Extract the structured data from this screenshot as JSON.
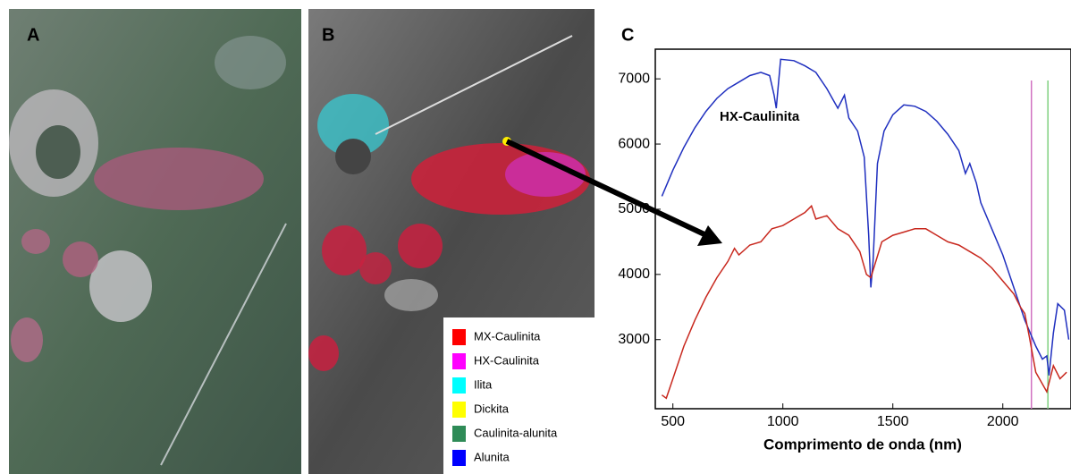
{
  "panels": {
    "a": "A",
    "b": "B"
  },
  "panel_b_legend": [
    {
      "label": "MX-Caulinita",
      "color": "#ff0000"
    },
    {
      "label": "HX-Caulinita",
      "color": "#ff00ff"
    },
    {
      "label": "Ilita",
      "color": "#00ffff"
    },
    {
      "label": "Dickita",
      "color": "#ffff00"
    },
    {
      "label": "Caulinita-alunita",
      "color": "#2e8b57"
    },
    {
      "label": "Alunita",
      "color": "#0000ff"
    }
  ],
  "chart_data": {
    "type": "line",
    "panel_label": "C",
    "xlabel": "Comprimento de onda (nm)",
    "annotation": "HX-Caulinita",
    "xlim": [
      420,
      2310
    ],
    "ylim": [
      1940,
      7455
    ],
    "xticks": [
      500,
      1000,
      1500,
      2000
    ],
    "yticks": [
      3000,
      4000,
      5000,
      6000,
      7000
    ],
    "reference_lines": [
      {
        "value": 2130,
        "color": "#d070c0"
      },
      {
        "value": 2205,
        "color": "#80d080"
      }
    ],
    "series": [
      {
        "name": "HX-Caulinita",
        "color": "#1f2fbf",
        "x": [
          450,
          500,
          550,
          600,
          650,
          700,
          750,
          800,
          850,
          900,
          940,
          960,
          970,
          990,
          1050,
          1100,
          1150,
          1200,
          1250,
          1280,
          1300,
          1340,
          1370,
          1390,
          1400,
          1410,
          1430,
          1460,
          1500,
          1550,
          1600,
          1650,
          1700,
          1750,
          1800,
          1830,
          1850,
          1880,
          1900,
          1950,
          2000,
          2050,
          2100,
          2150,
          2180,
          2200,
          2210,
          2230,
          2250,
          2280,
          2300
        ],
        "values": [
          5200,
          5600,
          5950,
          6250,
          6500,
          6700,
          6850,
          6950,
          7050,
          7100,
          7050,
          6750,
          6550,
          7300,
          7280,
          7200,
          7100,
          6850,
          6550,
          6750,
          6400,
          6200,
          5800,
          4600,
          3800,
          4200,
          5700,
          6200,
          6450,
          6600,
          6580,
          6500,
          6350,
          6150,
          5900,
          5550,
          5700,
          5400,
          5100,
          4700,
          4300,
          3800,
          3300,
          2900,
          2700,
          2750,
          2450,
          3100,
          3550,
          3450,
          3000
        ]
      },
      {
        "color": "#c8281e",
        "x": [
          450,
          470,
          500,
          550,
          600,
          650,
          700,
          750,
          780,
          800,
          850,
          900,
          950,
          1000,
          1050,
          1100,
          1130,
          1150,
          1200,
          1250,
          1300,
          1350,
          1380,
          1400,
          1450,
          1500,
          1550,
          1600,
          1650,
          1700,
          1750,
          1800,
          1850,
          1900,
          1950,
          2000,
          2050,
          2080,
          2100,
          2120,
          2150,
          2200,
          2230,
          2260,
          2290
        ],
        "values": [
          2150,
          2100,
          2400,
          2900,
          3300,
          3650,
          3950,
          4200,
          4400,
          4300,
          4450,
          4500,
          4700,
          4750,
          4850,
          4950,
          5050,
          4850,
          4900,
          4700,
          4600,
          4350,
          4000,
          3950,
          4500,
          4600,
          4650,
          4700,
          4700,
          4600,
          4500,
          4450,
          4350,
          4250,
          4100,
          3900,
          3700,
          3500,
          3400,
          3050,
          2500,
          2200,
          2600,
          2400,
          2500
        ]
      }
    ]
  }
}
